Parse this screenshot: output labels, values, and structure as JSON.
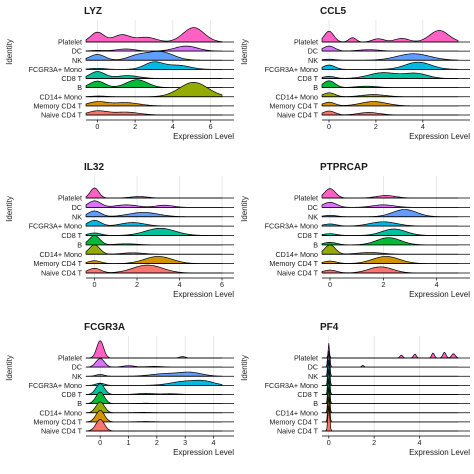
{
  "figure": {
    "y_axis_title": "Identity",
    "x_axis_title": "Expression Level"
  },
  "identities": [
    "Naive CD4 T",
    "Memory CD4 T",
    "CD14+ Mono",
    "B",
    "CD8 T",
    "FCGR3A+ Mono",
    "NK",
    "DC",
    "Platelet"
  ],
  "colors": {
    "Naive CD4 T": "#f8766d",
    "Memory CD4 T": "#d39200",
    "CD14+ Mono": "#93aa00",
    "B": "#00ba38",
    "CD8 T": "#00c19f",
    "FCGR3A+ Mono": "#00b9e3",
    "NK": "#619cff",
    "DC": "#db72fb",
    "Platelet": "#ff61c3"
  },
  "chart_data": [
    {
      "type": "area",
      "subtype": "ridgeline",
      "title": "LYZ",
      "xlabel": "Expression Level",
      "ylabel": "Identity",
      "xlim": [
        -0.6,
        6.6
      ],
      "xticks": [
        0,
        2,
        4,
        6
      ],
      "series": [
        {
          "name": "Naive CD4 T",
          "peaks": [
            [
              0.0,
              0.55,
              0.5
            ],
            [
              1.5,
              0.4,
              0.7
            ]
          ]
        },
        {
          "name": "Memory CD4 T",
          "peaks": [
            [
              0.0,
              0.55,
              0.5
            ],
            [
              1.5,
              0.45,
              0.7
            ]
          ]
        },
        {
          "name": "CD14+ Mono",
          "peaks": [
            [
              0.1,
              0.1,
              0.4
            ],
            [
              5.1,
              2.0,
              0.75
            ]
          ]
        },
        {
          "name": "B",
          "peaks": [
            [
              0.0,
              0.9,
              0.4
            ],
            [
              2.1,
              1.1,
              0.55
            ]
          ]
        },
        {
          "name": "CD8 T",
          "peaks": [
            [
              0.0,
              0.95,
              0.4
            ],
            [
              1.6,
              0.4,
              0.6
            ]
          ]
        },
        {
          "name": "FCGR3A+ Mono",
          "peaks": [
            [
              0.0,
              0.15,
              0.4
            ],
            [
              3.0,
              1.0,
              0.5
            ],
            [
              4.3,
              0.55,
              0.6
            ]
          ]
        },
        {
          "name": "NK",
          "peaks": [
            [
              0.0,
              0.8,
              0.4
            ],
            [
              2.1,
              0.55,
              0.5
            ],
            [
              3.3,
              1.2,
              0.7
            ]
          ]
        },
        {
          "name": "DC",
          "peaks": [
            [
              0.0,
              0.1,
              0.4
            ],
            [
              1.5,
              0.3,
              0.5
            ],
            [
              4.7,
              0.7,
              0.6
            ]
          ]
        },
        {
          "name": "Platelet",
          "peaks": [
            [
              0.0,
              1.35,
              0.35
            ],
            [
              1.3,
              1.0,
              0.45
            ],
            [
              2.6,
              0.65,
              0.5
            ],
            [
              5.1,
              2.0,
              0.55
            ]
          ]
        }
      ]
    },
    {
      "type": "area",
      "subtype": "ridgeline",
      "title": "CCL5",
      "xlabel": "Expression Level",
      "ylabel": "Identity",
      "xlim": [
        -0.3,
        5.5
      ],
      "xticks": [
        0,
        2,
        4
      ],
      "series": [
        {
          "name": "Naive CD4 T",
          "peaks": [
            [
              0.0,
              0.55,
              0.25
            ],
            [
              1.7,
              0.35,
              0.45
            ]
          ]
        },
        {
          "name": "Memory CD4 T",
          "peaks": [
            [
              0.0,
              0.5,
              0.25
            ],
            [
              1.9,
              0.6,
              0.55
            ]
          ]
        },
        {
          "name": "CD14+ Mono",
          "peaks": [
            [
              0.0,
              0.55,
              0.25
            ],
            [
              1.9,
              0.3,
              0.5
            ]
          ]
        },
        {
          "name": "B",
          "peaks": [
            [
              0.0,
              0.95,
              0.25
            ],
            [
              1.6,
              0.2,
              0.45
            ]
          ]
        },
        {
          "name": "CD8 T",
          "peaks": [
            [
              0.0,
              0.3,
              0.25
            ],
            [
              2.3,
              0.8,
              0.6
            ],
            [
              3.7,
              0.7,
              0.5
            ]
          ]
        },
        {
          "name": "FCGR3A+ Mono",
          "peaks": [
            [
              0.0,
              0.6,
              0.25
            ],
            [
              3.8,
              1.0,
              0.55
            ]
          ]
        },
        {
          "name": "NK",
          "peaks": [
            [
              0.0,
              0.15,
              0.25
            ],
            [
              3.6,
              0.9,
              0.7
            ]
          ]
        },
        {
          "name": "DC",
          "peaks": [
            [
              0.0,
              0.7,
              0.25
            ],
            [
              1.7,
              0.2,
              0.45
            ]
          ]
        },
        {
          "name": "Platelet",
          "peaks": [
            [
              0.0,
              1.5,
              0.2
            ],
            [
              1.0,
              0.6,
              0.15
            ],
            [
              2.1,
              0.45,
              0.25
            ],
            [
              3.1,
              0.5,
              0.3
            ],
            [
              4.7,
              1.6,
              0.4
            ]
          ]
        }
      ]
    },
    {
      "type": "area",
      "subtype": "ridgeline",
      "title": "IL32",
      "xlabel": "Expression Level",
      "ylabel": "Identity",
      "xlim": [
        -0.4,
        6.0
      ],
      "xticks": [
        0,
        2,
        4,
        6
      ],
      "series": [
        {
          "name": "Naive CD4 T",
          "peaks": [
            [
              0.0,
              0.65,
              0.3
            ],
            [
              2.5,
              1.1,
              0.7
            ]
          ]
        },
        {
          "name": "Memory CD4 T",
          "peaks": [
            [
              0.0,
              0.4,
              0.3
            ],
            [
              3.0,
              1.0,
              0.65
            ]
          ]
        },
        {
          "name": "CD14+ Mono",
          "peaks": [
            [
              0.0,
              1.3,
              0.25
            ],
            [
              1.8,
              0.2,
              0.5
            ]
          ]
        },
        {
          "name": "B",
          "peaks": [
            [
              0.0,
              1.3,
              0.25
            ],
            [
              1.5,
              0.15,
              0.5
            ]
          ]
        },
        {
          "name": "CD8 T",
          "peaks": [
            [
              0.0,
              0.35,
              0.3
            ],
            [
              3.1,
              1.0,
              0.7
            ]
          ]
        },
        {
          "name": "FCGR3A+ Mono",
          "peaks": [
            [
              0.0,
              0.8,
              0.3
            ],
            [
              1.8,
              0.5,
              0.55
            ]
          ]
        },
        {
          "name": "NK",
          "peaks": [
            [
              0.0,
              0.8,
              0.3
            ],
            [
              2.3,
              0.6,
              0.7
            ]
          ]
        },
        {
          "name": "DC",
          "peaks": [
            [
              0.0,
              0.9,
              0.3
            ],
            [
              1.5,
              0.35,
              0.5
            ],
            [
              3.3,
              0.3,
              0.4
            ]
          ]
        },
        {
          "name": "Platelet",
          "peaks": [
            [
              0.0,
              1.4,
              0.2
            ],
            [
              2.1,
              0.2,
              0.4
            ]
          ]
        }
      ]
    },
    {
      "type": "area",
      "subtype": "ridgeline",
      "title": "PTPRCAP",
      "xlabel": "Expression Level",
      "ylabel": "Identity",
      "xlim": [
        -0.3,
        4.8
      ],
      "xticks": [
        0,
        2,
        4
      ],
      "series": [
        {
          "name": "Naive CD4 T",
          "peaks": [
            [
              0.0,
              0.4,
              0.25
            ],
            [
              1.9,
              0.85,
              0.45
            ]
          ]
        },
        {
          "name": "Memory CD4 T",
          "peaks": [
            [
              0.0,
              0.35,
              0.25
            ],
            [
              2.1,
              1.0,
              0.5
            ]
          ]
        },
        {
          "name": "CD14+ Mono",
          "peaks": [
            [
              0.0,
              1.3,
              0.2
            ],
            [
              1.5,
              0.25,
              0.45
            ]
          ]
        },
        {
          "name": "B",
          "peaks": [
            [
              0.0,
              0.35,
              0.25
            ],
            [
              2.2,
              1.0,
              0.45
            ]
          ]
        },
        {
          "name": "CD8 T",
          "peaks": [
            [
              0.0,
              0.25,
              0.25
            ],
            [
              2.4,
              0.9,
              0.45
            ]
          ]
        },
        {
          "name": "FCGR3A+ Mono",
          "peaks": [
            [
              0.0,
              0.3,
              0.25
            ],
            [
              2.0,
              0.6,
              0.5
            ]
          ]
        },
        {
          "name": "NK",
          "peaks": [
            [
              0.0,
              0.2,
              0.25
            ],
            [
              2.8,
              1.0,
              0.45
            ]
          ]
        },
        {
          "name": "DC",
          "peaks": [
            [
              0.0,
              0.7,
              0.25
            ],
            [
              2.0,
              0.35,
              0.4
            ]
          ]
        },
        {
          "name": "Platelet",
          "peaks": [
            [
              0.0,
              1.3,
              0.2
            ],
            [
              2.1,
              0.35,
              0.35
            ]
          ]
        }
      ]
    },
    {
      "type": "area",
      "subtype": "ridgeline",
      "title": "FCGR3A",
      "xlabel": "Expression Level",
      "ylabel": "Identity",
      "xlim": [
        -0.5,
        4.3
      ],
      "xticks": [
        0,
        1,
        2,
        3,
        4
      ],
      "series": [
        {
          "name": "Naive CD4 T",
          "peaks": [
            [
              0.0,
              1.6,
              0.15
            ]
          ]
        },
        {
          "name": "Memory CD4 T",
          "peaks": [
            [
              0.0,
              1.6,
              0.15
            ],
            [
              1.6,
              0.05,
              0.3
            ]
          ]
        },
        {
          "name": "CD14+ Mono",
          "peaks": [
            [
              0.0,
              1.5,
              0.15
            ],
            [
              1.5,
              0.05,
              0.3
            ]
          ]
        },
        {
          "name": "B",
          "peaks": [
            [
              0.0,
              1.6,
              0.15
            ],
            [
              1.6,
              0.05,
              0.3
            ]
          ]
        },
        {
          "name": "CD8 T",
          "peaks": [
            [
              0.0,
              1.5,
              0.15
            ],
            [
              1.6,
              0.15,
              0.3
            ],
            [
              2.5,
              0.1,
              0.3
            ]
          ]
        },
        {
          "name": "FCGR3A+ Mono",
          "peaks": [
            [
              0.0,
              0.3,
              0.15
            ],
            [
              3.0,
              0.55,
              0.5
            ],
            [
              3.7,
              0.45,
              0.35
            ]
          ]
        },
        {
          "name": "NK",
          "peaks": [
            [
              0.0,
              0.25,
              0.15
            ],
            [
              2.3,
              0.35,
              0.5
            ],
            [
              3.2,
              0.5,
              0.4
            ]
          ]
        },
        {
          "name": "DC",
          "peaks": [
            [
              0.0,
              1.2,
              0.15
            ],
            [
              1.0,
              0.2,
              0.2
            ],
            [
              1.9,
              0.1,
              0.3
            ]
          ]
        },
        {
          "name": "Platelet",
          "peaks": [
            [
              0.0,
              2.4,
              0.12
            ],
            [
              2.9,
              0.2,
              0.1
            ]
          ]
        }
      ]
    },
    {
      "type": "area",
      "subtype": "ridgeline",
      "title": "PF4",
      "xlabel": "Expression Level",
      "ylabel": "Identity",
      "xlim": [
        -0.3,
        5.7
      ],
      "xticks": [
        0,
        2,
        4
      ],
      "series": [
        {
          "name": "Naive CD4 T",
          "peaks": [
            [
              0.0,
              3.5,
              0.04
            ]
          ]
        },
        {
          "name": "Memory CD4 T",
          "peaks": [
            [
              0.0,
              3.5,
              0.04
            ]
          ]
        },
        {
          "name": "CD14+ Mono",
          "peaks": [
            [
              0.0,
              3.5,
              0.04
            ]
          ]
        },
        {
          "name": "B",
          "peaks": [
            [
              0.0,
              3.5,
              0.04
            ]
          ]
        },
        {
          "name": "CD8 T",
          "peaks": [
            [
              0.0,
              3.5,
              0.04
            ]
          ]
        },
        {
          "name": "FCGR3A+ Mono",
          "peaks": [
            [
              0.0,
              3.5,
              0.04
            ]
          ]
        },
        {
          "name": "NK",
          "peaks": [
            [
              0.0,
              3.5,
              0.04
            ]
          ]
        },
        {
          "name": "DC",
          "peaks": [
            [
              0.0,
              3.3,
              0.04
            ],
            [
              1.5,
              0.25,
              0.05
            ]
          ]
        },
        {
          "name": "Platelet",
          "peaks": [
            [
              0.0,
              0.6,
              0.04
            ],
            [
              3.2,
              0.4,
              0.06
            ],
            [
              3.8,
              0.55,
              0.06
            ],
            [
              4.6,
              0.7,
              0.06
            ],
            [
              5.1,
              0.8,
              0.07
            ],
            [
              5.5,
              0.6,
              0.08
            ]
          ]
        }
      ]
    }
  ]
}
